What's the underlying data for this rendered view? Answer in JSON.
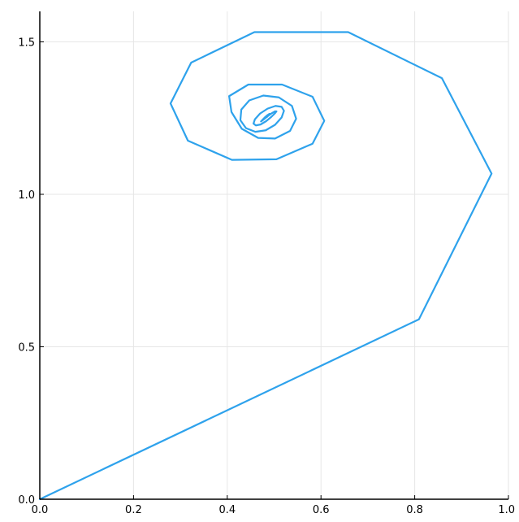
{
  "chart_data": {
    "type": "line",
    "title": "",
    "xlabel": "",
    "ylabel": "",
    "xlim": [
      0.0,
      1.0
    ],
    "ylim": [
      0.0,
      1.6
    ],
    "grid": true,
    "legend": "none",
    "x_ticks": [
      {
        "value": 0.0,
        "label": "0.0"
      },
      {
        "value": 0.2,
        "label": "0.2"
      },
      {
        "value": 0.4,
        "label": "0.4"
      },
      {
        "value": 0.6,
        "label": "0.6"
      },
      {
        "value": 0.8,
        "label": "0.8"
      },
      {
        "value": 1.0,
        "label": "1.0"
      }
    ],
    "y_ticks": [
      {
        "value": 0.0,
        "label": "0.0"
      },
      {
        "value": 0.5,
        "label": "0.5"
      },
      {
        "value": 1.0,
        "label": "1.0"
      },
      {
        "value": 1.5,
        "label": "1.5"
      }
    ],
    "series": [
      {
        "color": "#2ea2ec",
        "x": [
          0.0,
          0.809,
          0.964,
          0.858,
          0.658,
          0.458,
          0.323,
          0.279,
          0.316,
          0.41,
          0.505,
          0.582,
          0.607,
          0.582,
          0.517,
          0.445,
          0.404,
          0.409,
          0.431,
          0.466,
          0.502,
          0.534,
          0.547,
          0.538,
          0.51,
          0.477,
          0.447,
          0.43,
          0.428,
          0.44,
          0.46,
          0.482,
          0.502,
          0.516,
          0.521,
          0.516,
          0.503,
          0.486,
          0.47,
          0.459,
          0.456,
          0.461,
          0.471,
          0.483,
          0.494,
          0.502,
          0.505,
          0.502,
          0.495,
          0.486,
          0.478,
          0.473,
          0.472,
          0.475,
          0.48,
          0.486,
          0.49,
          0.491,
          0.489,
          0.485,
          0.481
        ],
        "y": [
          0.0,
          0.59,
          1.068,
          1.381,
          1.532,
          1.532,
          1.432,
          1.298,
          1.176,
          1.113,
          1.115,
          1.166,
          1.241,
          1.32,
          1.36,
          1.36,
          1.322,
          1.27,
          1.215,
          1.185,
          1.183,
          1.208,
          1.248,
          1.29,
          1.318,
          1.324,
          1.308,
          1.278,
          1.243,
          1.217,
          1.205,
          1.21,
          1.228,
          1.252,
          1.274,
          1.287,
          1.29,
          1.281,
          1.265,
          1.246,
          1.232,
          1.226,
          1.229,
          1.24,
          1.254,
          1.266,
          1.272,
          1.272,
          1.266,
          1.256,
          1.246,
          1.24,
          1.239,
          1.244,
          1.252,
          1.26,
          1.264,
          1.264,
          1.26,
          1.254,
          1.25
        ]
      }
    ]
  }
}
